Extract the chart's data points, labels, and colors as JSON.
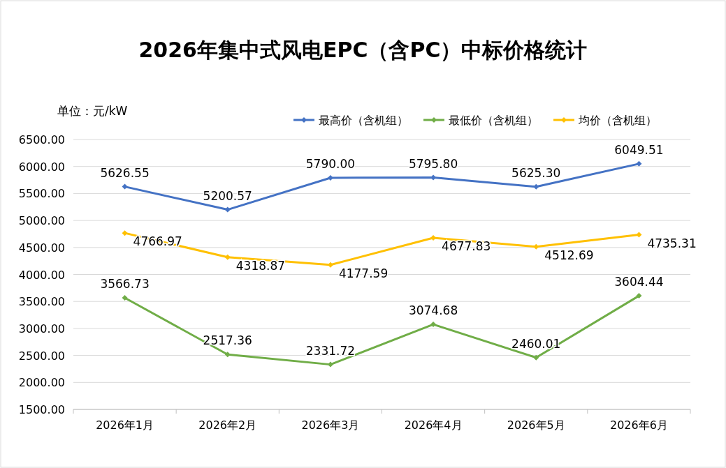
{
  "chart_data": {
    "type": "line",
    "title": "2026年集中式风电EPC（含PC）中标价格统计",
    "ylabel": "单位：元/kW",
    "categories": [
      "2026年1月",
      "2026年2月",
      "2026年3月",
      "2026年4月",
      "2026年5月",
      "2026年6月"
    ],
    "series": [
      {
        "name": "最高价（含机组）",
        "color": "#4472c4",
        "values": [
          5626.55,
          5200.57,
          5790.0,
          5795.8,
          5625.3,
          6049.51
        ],
        "value_labels": [
          "5626.55",
          "5200.57",
          "5790.00",
          "5795.80",
          "5625.30",
          "6049.51"
        ]
      },
      {
        "name": "最低价（含机组）",
        "color": "#70ad47",
        "values": [
          3566.73,
          2517.36,
          2331.72,
          3074.68,
          2460.01,
          3604.44
        ],
        "value_labels": [
          "3566.73",
          "2517.36",
          "2331.72",
          "3074.68",
          "2460.01",
          "3604.44"
        ]
      },
      {
        "name": "均价（含机组）",
        "color": "#ffc000",
        "values": [
          4766.97,
          4318.87,
          4177.59,
          4677.83,
          4512.69,
          4735.31
        ],
        "value_labels": [
          "4766.97",
          "4318.87",
          "4177.59",
          "4677.83",
          "4512.69",
          "4735.31"
        ]
      }
    ],
    "ylim": [
      1500,
      6500
    ],
    "yticks": [
      {
        "value": 1500,
        "label": "1500.00"
      },
      {
        "value": 2000,
        "label": "2000.00"
      },
      {
        "value": 2500,
        "label": "2500.00"
      },
      {
        "value": 3000,
        "label": "3000.00"
      },
      {
        "value": 3500,
        "label": "3500.00"
      },
      {
        "value": 4000,
        "label": "4000.00"
      },
      {
        "value": 4500,
        "label": "4500.00"
      },
      {
        "value": 5000,
        "label": "5000.00"
      },
      {
        "value": 5500,
        "label": "5500.00"
      },
      {
        "value": 6000,
        "label": "6000.00"
      },
      {
        "value": 6500,
        "label": "6500.00"
      }
    ],
    "grid": "y",
    "legend": "top",
    "marker": "diamond",
    "line_style": "solid"
  }
}
